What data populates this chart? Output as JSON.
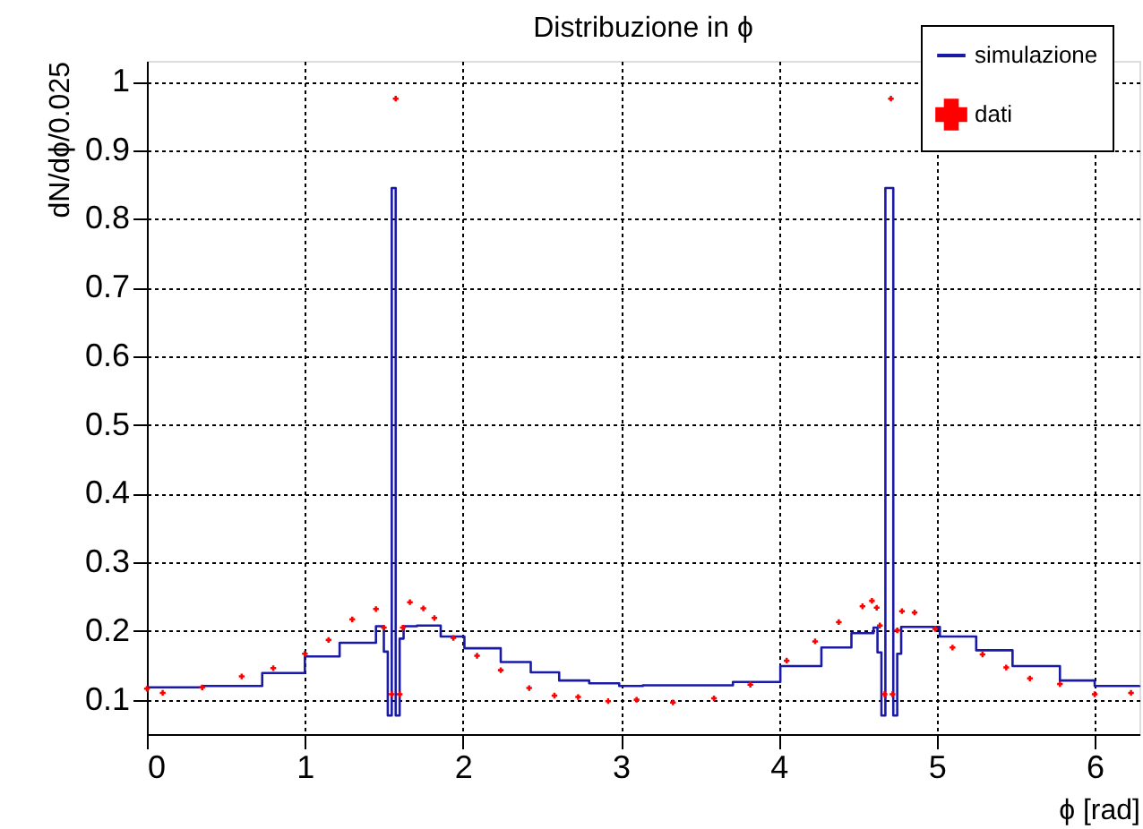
{
  "chart_data": {
    "type": "step",
    "title": "Distribuzione in ϕ",
    "xlabel": "ϕ [rad]",
    "ylabel": "dN/dϕ/0.025",
    "xlim": [
      0,
      6.2832
    ],
    "ylim": [
      0.05,
      1.03
    ],
    "xticks": [
      0,
      1,
      2,
      3,
      4,
      5,
      6
    ],
    "yticks": [
      0.1,
      0.2,
      0.3,
      0.4,
      0.5,
      0.6,
      0.7,
      0.8,
      0.9,
      1
    ],
    "grid": true,
    "legend": "top right",
    "line_style": "solid",
    "series": [
      {
        "name": "simulazione",
        "type": "step",
        "color": "#1a1aa6",
        "marker": "none",
        "x": [
          0,
          0.35,
          0.73,
          1.0,
          1.22,
          1.45,
          1.5,
          1.525,
          1.55,
          1.575,
          1.6,
          1.625,
          1.71,
          1.86,
          2.01,
          2.24,
          2.43,
          2.61,
          2.8,
          2.99,
          3.14,
          3.44,
          3.71,
          4.01,
          4.27,
          4.46,
          4.6,
          4.625,
          4.65,
          4.675,
          4.725,
          4.75,
          4.775,
          5.02,
          5.25,
          5.48,
          5.78,
          6.0,
          6.2832
        ],
        "values": [
          0.118,
          0.12,
          0.139,
          0.163,
          0.183,
          0.207,
          0.17,
          0.077,
          0.845,
          0.077,
          0.189,
          0.207,
          0.208,
          0.192,
          0.175,
          0.155,
          0.14,
          0.128,
          0.124,
          0.12,
          0.121,
          0.121,
          0.126,
          0.149,
          0.176,
          0.197,
          0.205,
          0.169,
          0.077,
          0.845,
          0.077,
          0.167,
          0.206,
          0.192,
          0.172,
          0.149,
          0.128,
          0.12,
          0.121
        ]
      },
      {
        "name": "dati",
        "type": "scatter",
        "color": "#ff0000",
        "marker": "cross",
        "x": [
          0.0,
          0.1,
          0.35,
          0.6,
          0.8,
          1.0,
          1.15,
          1.3,
          1.45,
          1.5,
          1.55,
          1.575,
          1.6,
          1.62,
          1.665,
          1.75,
          1.82,
          1.94,
          2.09,
          2.24,
          2.42,
          2.58,
          2.73,
          2.92,
          3.1,
          3.33,
          3.59,
          3.82,
          4.05,
          4.23,
          4.38,
          4.53,
          4.59,
          4.62,
          4.64,
          4.67,
          4.71,
          4.72,
          4.75,
          4.78,
          4.86,
          4.99,
          5.1,
          5.29,
          5.44,
          5.59,
          5.78,
          6.0,
          6.23
        ],
        "values": [
          0.116,
          0.11,
          0.118,
          0.134,
          0.146,
          0.167,
          0.187,
          0.217,
          0.232,
          0.205,
          0.108,
          0.975,
          0.108,
          0.205,
          0.242,
          0.233,
          0.219,
          0.19,
          0.164,
          0.143,
          0.117,
          0.106,
          0.104,
          0.098,
          0.1,
          0.096,
          0.102,
          0.122,
          0.157,
          0.185,
          0.213,
          0.236,
          0.244,
          0.234,
          0.208,
          0.108,
          0.975,
          0.108,
          0.201,
          0.229,
          0.227,
          0.203,
          0.176,
          0.166,
          0.147,
          0.131,
          0.123,
          0.108,
          0.11
        ]
      }
    ]
  }
}
